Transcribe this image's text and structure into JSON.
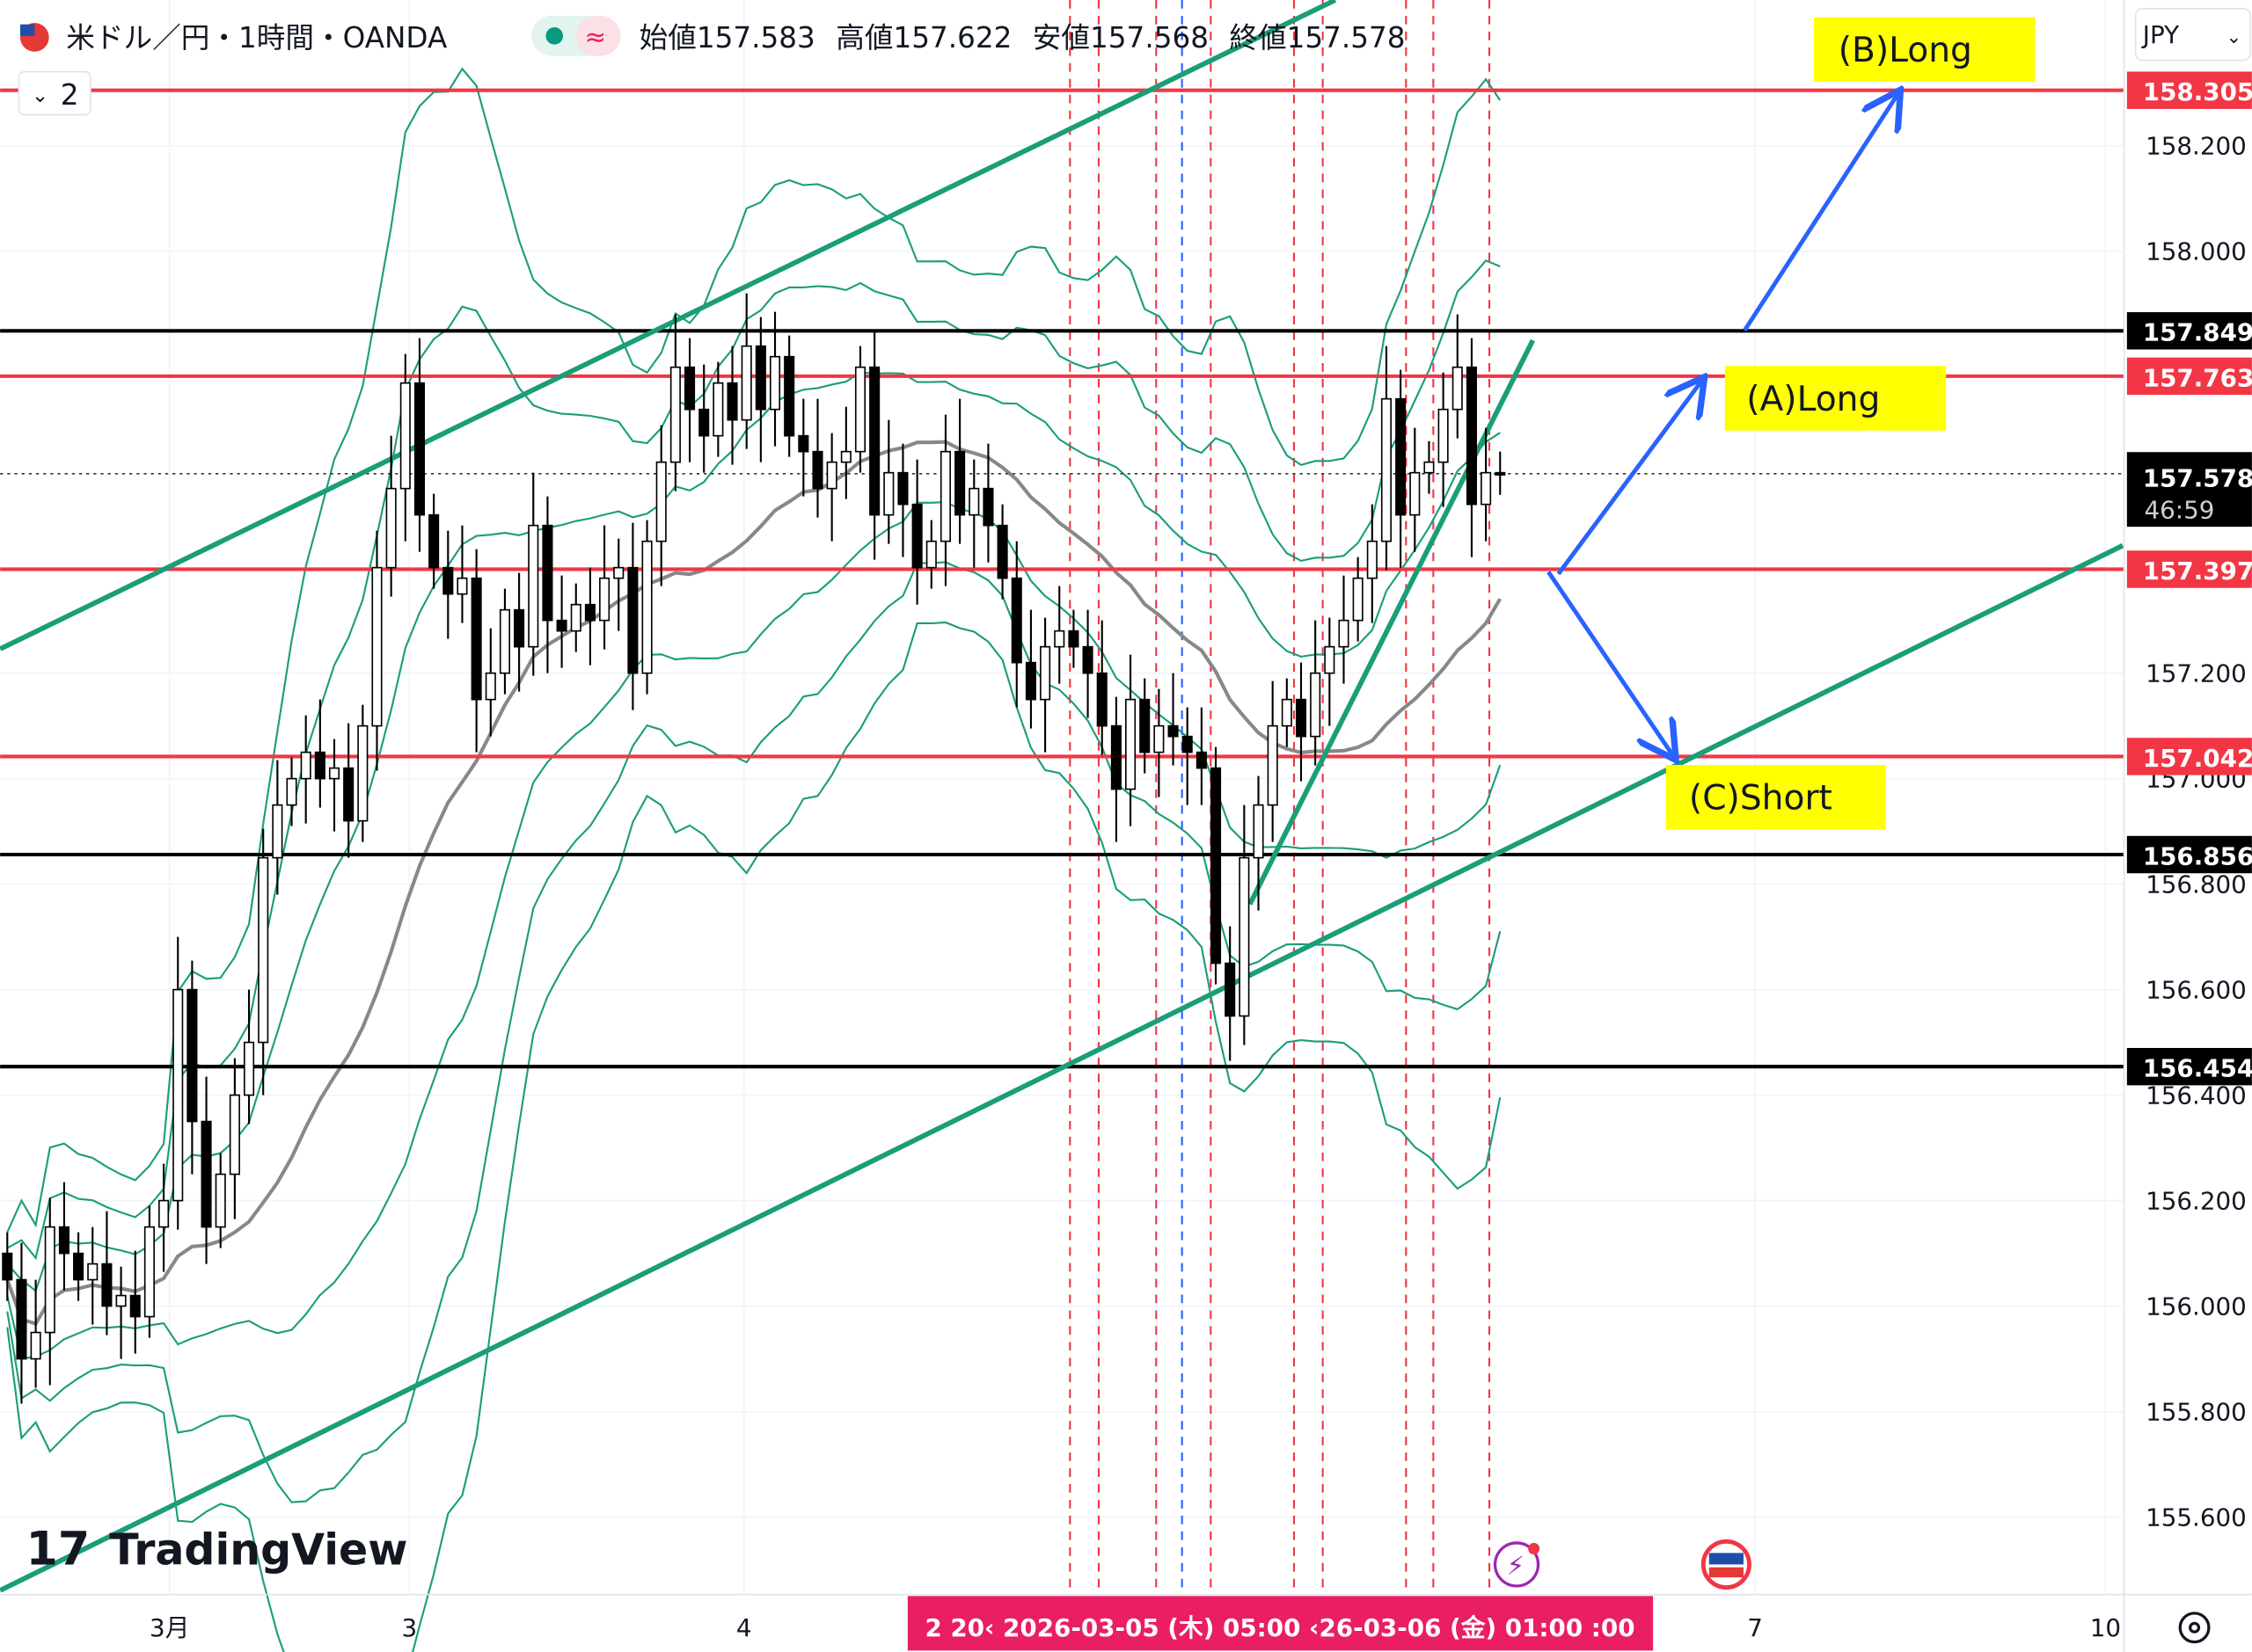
{
  "header": {
    "symbol": "米ドル／円・1時間・OANDA",
    "open_label": "始値",
    "open": "157.583",
    "high_label": "高値",
    "high": "157.622",
    "low_label": "安値",
    "low": "157.568",
    "close_label": "終値",
    "close": "157.578",
    "market_status_icon": "green-dot-icon",
    "delay_icon": "wave-icon",
    "collapse_label": "2"
  },
  "currency_selector": "JPY",
  "logo_text": "TradingView",
  "crosshair_time_label": "2  20‹  2026-03-05 (木)  05:00  ‹26-03-06 (金)  01:00  :00",
  "countdown": "46:59",
  "annotations": {
    "b_long": "(B)Long",
    "a_long": "(A)Long",
    "c_short": "(C)Short"
  },
  "colors": {
    "support_red": "#f23645",
    "trend_green": "#1a9e78",
    "arrow_blue": "#2962ff",
    "label_yellow": "#ffff00",
    "crosshair_pink": "#e91e63"
  },
  "chart_data": {
    "type": "candlestick",
    "title": "米ドル／円・1時間・OANDA",
    "x_tick_labels": [
      "3月",
      "3",
      "4",
      "7",
      "10"
    ],
    "y_tick_labels": [
      "158.200",
      "158.000",
      "157.200",
      "157.000",
      "156.800",
      "156.600",
      "156.400",
      "156.200",
      "156.000",
      "155.800",
      "155.600"
    ],
    "ylim": [
      155.5,
      158.45
    ],
    "grid": true,
    "close": [
      156.05,
      155.9,
      155.95,
      156.15,
      156.1,
      156.05,
      156.08,
      156.0,
      156.02,
      155.98,
      156.15,
      156.2,
      156.6,
      156.35,
      156.15,
      156.25,
      156.4,
      156.5,
      156.85,
      156.95,
      157.0,
      157.05,
      157.0,
      157.02,
      156.92,
      157.1,
      157.4,
      157.55,
      157.75,
      157.5,
      157.4,
      157.35,
      157.38,
      157.15,
      157.2,
      157.32,
      157.25,
      157.48,
      157.3,
      157.28,
      157.33,
      157.3,
      157.38,
      157.4,
      157.2,
      157.45,
      157.6,
      157.78,
      157.7,
      157.65,
      157.75,
      157.68,
      157.82,
      157.7,
      157.8,
      157.65,
      157.62,
      157.55,
      157.6,
      157.62,
      157.78,
      157.5,
      157.58,
      157.52,
      157.4,
      157.45,
      157.62,
      157.5,
      157.55,
      157.48,
      157.38,
      157.22,
      157.15,
      157.25,
      157.28,
      157.25,
      157.2,
      157.1,
      156.98,
      157.15,
      157.05,
      157.1,
      157.08,
      157.05,
      157.02,
      156.65,
      156.55,
      156.85,
      156.95,
      157.1,
      157.15,
      157.08,
      157.2,
      157.25,
      157.3,
      157.38,
      157.45,
      157.72,
      157.5,
      157.58,
      157.6,
      157.7,
      157.78,
      157.52,
      157.58,
      157.578
    ],
    "last_price": 157.578,
    "horizontal_lines": [
      {
        "price": 158.305,
        "label": "158.305",
        "color": "#f23645"
      },
      {
        "price": 157.849,
        "label": "157.849",
        "color": "#000000"
      },
      {
        "price": 157.763,
        "label": "157.763",
        "color": "#f23645"
      },
      {
        "price": 157.397,
        "label": "157.397",
        "color": "#f23645"
      },
      {
        "price": 157.042,
        "label": "157.042",
        "color": "#f23645"
      },
      {
        "price": 156.856,
        "label": "156.856",
        "color": "#000000"
      },
      {
        "price": 156.454,
        "label": "156.454",
        "color": "#000000"
      }
    ],
    "trend_lines": [
      {
        "from": [
          -0.5,
          157.246
        ],
        "to": [
          93.4,
          158.476
        ]
      },
      {
        "from": [
          -0.5,
          155.461
        ],
        "to": [
          148.8,
          157.442
        ]
      },
      {
        "from": [
          87.4,
          156.762
        ],
        "to": [
          107.3,
          157.831
        ]
      }
    ],
    "arrows": [
      {
        "name": "a_long",
        "from": [
          109.1,
          157.388
        ],
        "to": [
          119.2,
          157.755
        ]
      },
      {
        "name": "b_long",
        "from": [
          122.2,
          157.85
        ],
        "to": [
          133.0,
          158.299
        ]
      },
      {
        "name": "c_short",
        "from": [
          108.4,
          157.392
        ],
        "to": [
          117.2,
          157.042
        ]
      }
    ],
    "indicators": [
      "SMA 20",
      "Bollinger Bands ±1σ ±2σ ±3σ"
    ]
  }
}
